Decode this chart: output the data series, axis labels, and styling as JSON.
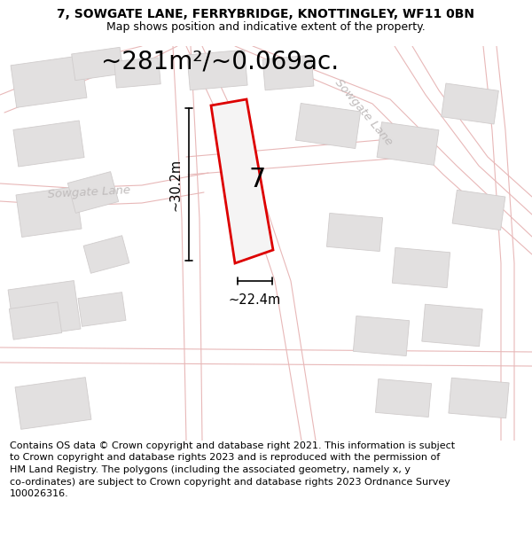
{
  "title_line1": "7, SOWGATE LANE, FERRYBRIDGE, KNOTTINGLEY, WF11 0BN",
  "title_line2": "Map shows position and indicative extent of the property.",
  "area_text": "~281m²/~0.069ac.",
  "label_number": "7",
  "dim_width": "~22.4m",
  "dim_height": "~30.2m",
  "road_label_right": "Sowgate Lane",
  "road_label_left": "Sowgate Lane",
  "footer": "Contains OS data © Crown copyright and database right 2021. This information is subject\nto Crown copyright and database rights 2023 and is reproduced with the permission of\nHM Land Registry. The polygons (including the associated geometry, namely x, y\nco-ordinates) are subject to Crown copyright and database rights 2023 Ordnance Survey\n100026316.",
  "map_bg": "#f5f4f4",
  "road_line_color": "#e8b8b8",
  "building_color": "#e2e0e0",
  "building_edge": "#d0cccc",
  "red_plot_color": "#dd0000",
  "plot_fill": "#f5f4f4",
  "title_fontsize": 10,
  "subtitle_fontsize": 9,
  "area_fontsize": 20,
  "footer_fontsize": 8.0,
  "road_label_fontsize": 9.5,
  "dim_fontsize": 10.5,
  "number_fontsize": 22
}
